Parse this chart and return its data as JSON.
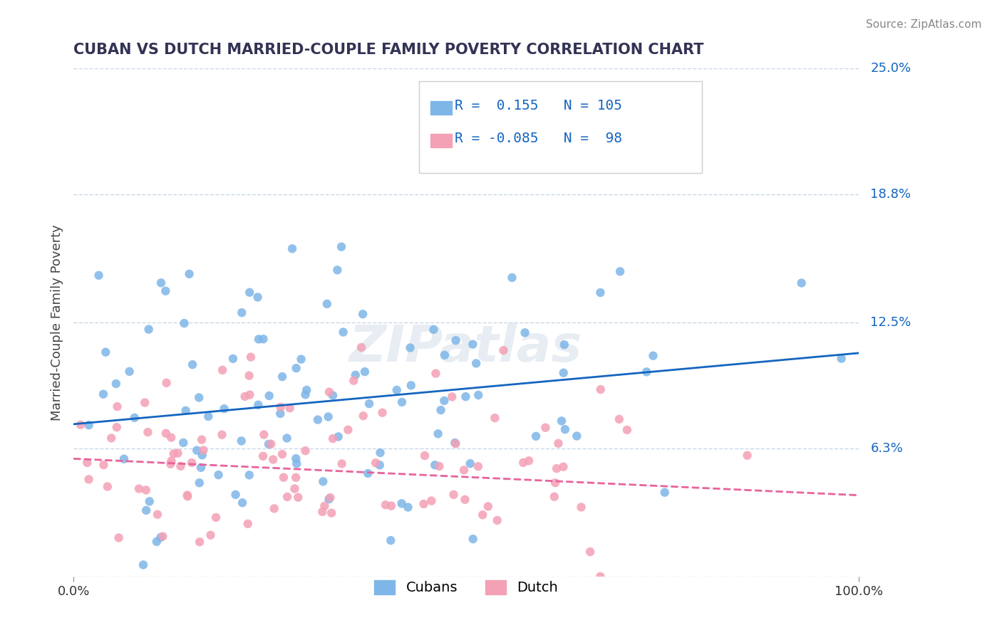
{
  "title": "CUBAN VS DUTCH MARRIED-COUPLE FAMILY POVERTY CORRELATION CHART",
  "source": "Source: ZipAtlas.com",
  "xlabel": "",
  "ylabel": "Married-Couple Family Poverty",
  "xmin": 0.0,
  "xmax": 100.0,
  "ymin": 0.0,
  "ymax": 25.0,
  "yticks": [
    0.0,
    6.3,
    12.5,
    18.8,
    25.0
  ],
  "xticks": [
    0.0,
    100.0
  ],
  "xtick_labels": [
    "0.0%",
    "100.0%"
  ],
  "ytick_labels": [
    "",
    "6.3%",
    "12.5%",
    "18.8%",
    "25.0%"
  ],
  "cuban_R": 0.155,
  "cuban_N": 105,
  "dutch_R": -0.085,
  "dutch_N": 98,
  "cuban_color": "#7EB6E8",
  "dutch_color": "#F4A0B5",
  "cuban_line_color": "#1565C0",
  "dutch_line_color": "#E8639A",
  "background_color": "#FFFFFF",
  "grid_color": "#C8D8E8",
  "title_color": "#333355",
  "source_color": "#888888",
  "watermark": "ZIPatlas",
  "legend_label_cuban": "Cubans",
  "legend_label_dutch": "Dutch",
  "cuban_intercept": 7.5,
  "cuban_slope": 0.035,
  "dutch_intercept": 5.8,
  "dutch_slope": -0.018
}
